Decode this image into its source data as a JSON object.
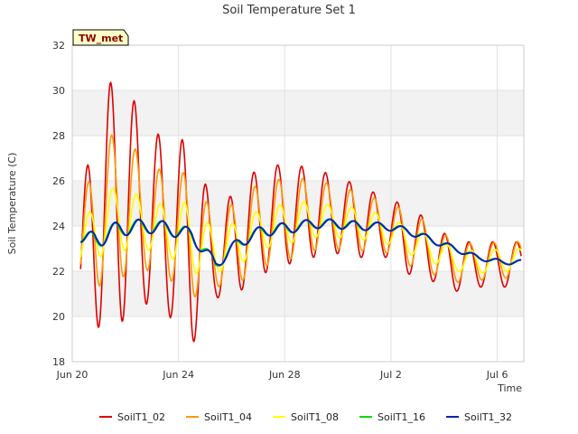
{
  "chart_data": {
    "type": "line",
    "title": "Soil Temperature Set 1",
    "xlabel": "Time",
    "ylabel": "Soil Temperature (C)",
    "badge": "TW_met",
    "xlim": [
      0,
      17
    ],
    "ylim": [
      18,
      32
    ],
    "grid": true,
    "legend_position": "bottom",
    "yticks": [
      18,
      20,
      22,
      24,
      26,
      28,
      30,
      32
    ],
    "xticks": [
      {
        "day": 0,
        "label": "Jun 20"
      },
      {
        "day": 4,
        "label": "Jun 24"
      },
      {
        "day": 8,
        "label": "Jun 28"
      },
      {
        "day": 12,
        "label": "Jul 2"
      },
      {
        "day": 16,
        "label": "Jul 6"
      }
    ],
    "series": [
      {
        "name": "SoilT1_02",
        "color": "#e00000",
        "mean": [
          20.8,
          24.5,
          25.3,
          24.6,
          23.9,
          23.3,
          22.6,
          23.5,
          24.3,
          24.5,
          24.6,
          24.5,
          24.2,
          24.0,
          23.4,
          22.9,
          22.2,
          22.3,
          22.3
        ],
        "amp": [
          1.2,
          5.0,
          5.6,
          4.0,
          3.8,
          4.6,
          1.8,
          2.4,
          2.4,
          2.2,
          2.0,
          1.7,
          1.6,
          1.3,
          1.5,
          1.3,
          1.1,
          1.0,
          1.0
        ]
      },
      {
        "name": "SoilT1_04",
        "color": "#ff9900",
        "mean": [
          21.9,
          24.4,
          25.0,
          24.5,
          24.0,
          23.6,
          22.8,
          23.4,
          24.1,
          24.3,
          24.5,
          24.4,
          24.2,
          24.0,
          23.5,
          23.0,
          22.4,
          22.4,
          22.5
        ],
        "amp": [
          0.9,
          3.1,
          3.3,
          2.4,
          2.3,
          2.8,
          1.5,
          1.9,
          1.9,
          1.8,
          1.6,
          1.4,
          1.3,
          1.1,
          1.2,
          1.1,
          0.9,
          0.8,
          0.8
        ]
      },
      {
        "name": "SoilT1_08",
        "color": "#ffff00",
        "mean": [
          22.6,
          23.9,
          24.4,
          24.1,
          23.8,
          23.5,
          22.8,
          23.3,
          23.9,
          24.1,
          24.3,
          24.2,
          24.1,
          23.9,
          23.4,
          23.0,
          22.5,
          22.4,
          22.5
        ],
        "amp": [
          0.6,
          1.3,
          1.5,
          1.1,
          1.1,
          1.6,
          0.9,
          1.0,
          0.9,
          0.9,
          0.8,
          0.7,
          0.7,
          0.6,
          0.6,
          0.6,
          0.5,
          0.5,
          0.5
        ]
      },
      {
        "name": "SoilT1_16",
        "color": "#00dd00",
        "mean": [
          23.5,
          23.4,
          23.9,
          24.0,
          23.9,
          23.6,
          22.3,
          23.3,
          23.8,
          23.9,
          24.1,
          24.1,
          24.0,
          24.0,
          23.8,
          23.4,
          23.0,
          22.6,
          22.4
        ],
        "amp": [
          0.1,
          0.4,
          0.35,
          0.3,
          0.3,
          0.3,
          0.25,
          0.25,
          0.25,
          0.25,
          0.2,
          0.2,
          0.2,
          0.15,
          0.15,
          0.15,
          0.12,
          0.1,
          0.1
        ]
      },
      {
        "name": "SoilT1_32",
        "color": "#0022bb",
        "mean": [
          23.5,
          23.4,
          23.9,
          24.0,
          23.9,
          23.6,
          22.3,
          23.3,
          23.8,
          23.9,
          24.1,
          24.1,
          24.0,
          24.0,
          23.8,
          23.4,
          23.0,
          22.6,
          22.4
        ],
        "amp": [
          0.1,
          0.4,
          0.35,
          0.3,
          0.3,
          0.3,
          0.25,
          0.25,
          0.25,
          0.25,
          0.2,
          0.2,
          0.2,
          0.15,
          0.15,
          0.15,
          0.12,
          0.1,
          0.1
        ]
      }
    ]
  }
}
